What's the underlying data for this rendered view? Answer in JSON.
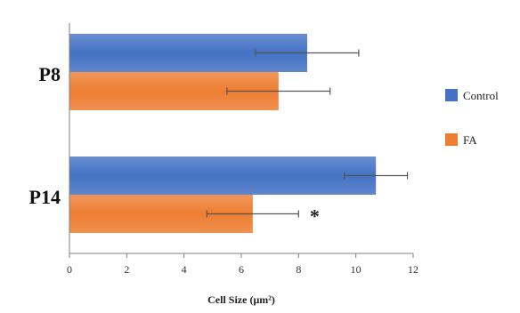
{
  "chart_data": {
    "type": "bar",
    "orientation": "horizontal",
    "categories": [
      "P8",
      "P14"
    ],
    "series": [
      {
        "name": "Control",
        "values": [
          8.3,
          10.7
        ],
        "errors": [
          1.8,
          1.1
        ],
        "color": "#4472C4"
      },
      {
        "name": "FA",
        "values": [
          7.3,
          6.4
        ],
        "errors": [
          1.8,
          1.6
        ],
        "color": "#ED7D31"
      }
    ],
    "xlabel": "Cell Size (μm²)",
    "ylabel": "",
    "title": "",
    "xlim": [
      0,
      12
    ],
    "xticks": [
      0,
      2,
      4,
      6,
      8,
      10,
      12
    ],
    "annotations": [
      {
        "category": "P14",
        "series": "FA",
        "text": "*"
      }
    ],
    "legend_position": "right",
    "grid": false
  }
}
